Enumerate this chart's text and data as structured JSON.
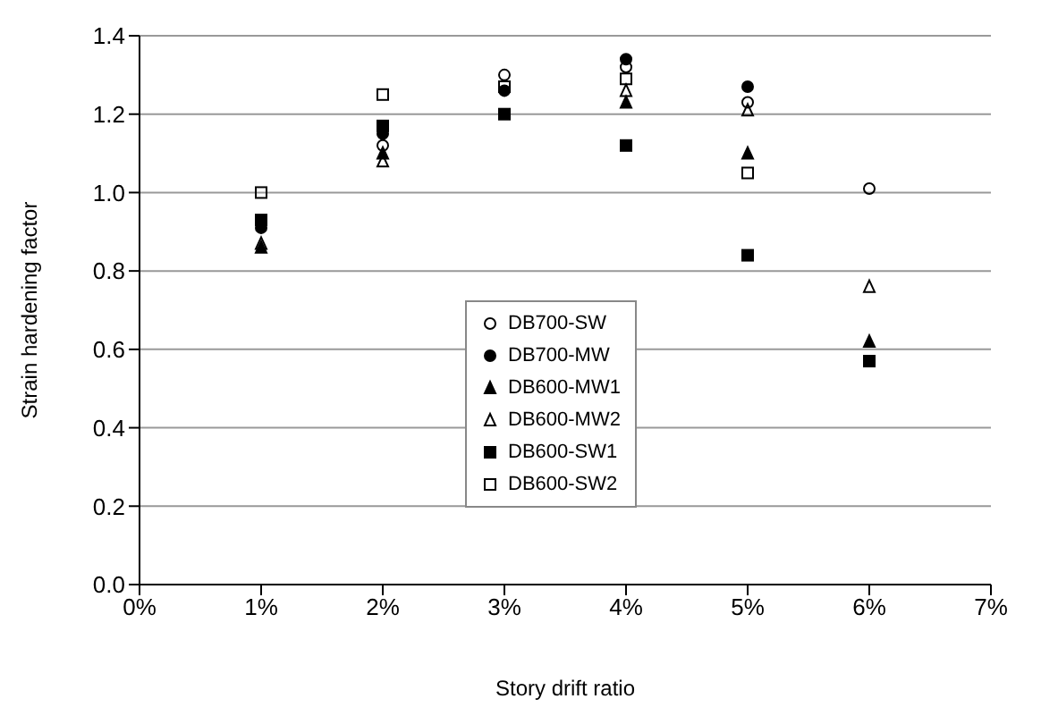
{
  "chart_data": {
    "type": "scatter",
    "xlabel": "Story drift ratio",
    "ylabel": "Strain hardening factor",
    "x": [
      1,
      2,
      3,
      4,
      5,
      6
    ],
    "xlim": [
      0,
      7
    ],
    "xticks": [
      {
        "value": 0,
        "label": "0%"
      },
      {
        "value": 1,
        "label": "1%"
      },
      {
        "value": 2,
        "label": "2%"
      },
      {
        "value": 3,
        "label": "3%"
      },
      {
        "value": 4,
        "label": "4%"
      },
      {
        "value": 5,
        "label": "5%"
      },
      {
        "value": 6,
        "label": "6%"
      },
      {
        "value": 7,
        "label": "7%"
      }
    ],
    "ylim": [
      0,
      1.4
    ],
    "yticks": [
      {
        "value": 0,
        "label": "0.0"
      },
      {
        "value": 0.2,
        "label": "0.2"
      },
      {
        "value": 0.4,
        "label": "0.4"
      },
      {
        "value": 0.6,
        "label": "0.6"
      },
      {
        "value": 0.8,
        "label": "0.8"
      },
      {
        "value": 1.0,
        "label": "1.0"
      },
      {
        "value": 1.2,
        "label": "1.2"
      },
      {
        "value": 1.4,
        "label": "1.4"
      }
    ],
    "grid": "y",
    "legend": "center",
    "series": [
      {
        "name": "DB700-SW",
        "color": "#000000",
        "marker": "circle-open",
        "values": [
          null,
          1.12,
          1.3,
          1.32,
          1.23,
          1.01
        ]
      },
      {
        "name": "DB700-MW",
        "color": "#000000",
        "marker": "circle",
        "values": [
          0.91,
          1.15,
          1.26,
          1.34,
          1.27,
          null
        ]
      },
      {
        "name": "DB600-MW1",
        "color": "#000000",
        "marker": "triangle",
        "values": [
          0.86,
          1.1,
          null,
          1.23,
          1.1,
          0.62
        ]
      },
      {
        "name": "DB600-MW2",
        "color": "#000000",
        "marker": "triangle-open",
        "values": [
          0.87,
          1.08,
          null,
          1.26,
          1.21,
          0.76
        ]
      },
      {
        "name": "DB600-SW1",
        "color": "#000000",
        "marker": "square",
        "values": [
          0.93,
          1.17,
          1.2,
          1.12,
          0.84,
          0.57
        ]
      },
      {
        "name": "DB600-SW2",
        "color": "#000000",
        "marker": "square-open",
        "values": [
          1.0,
          1.25,
          1.27,
          1.29,
          1.05,
          null
        ]
      }
    ]
  }
}
